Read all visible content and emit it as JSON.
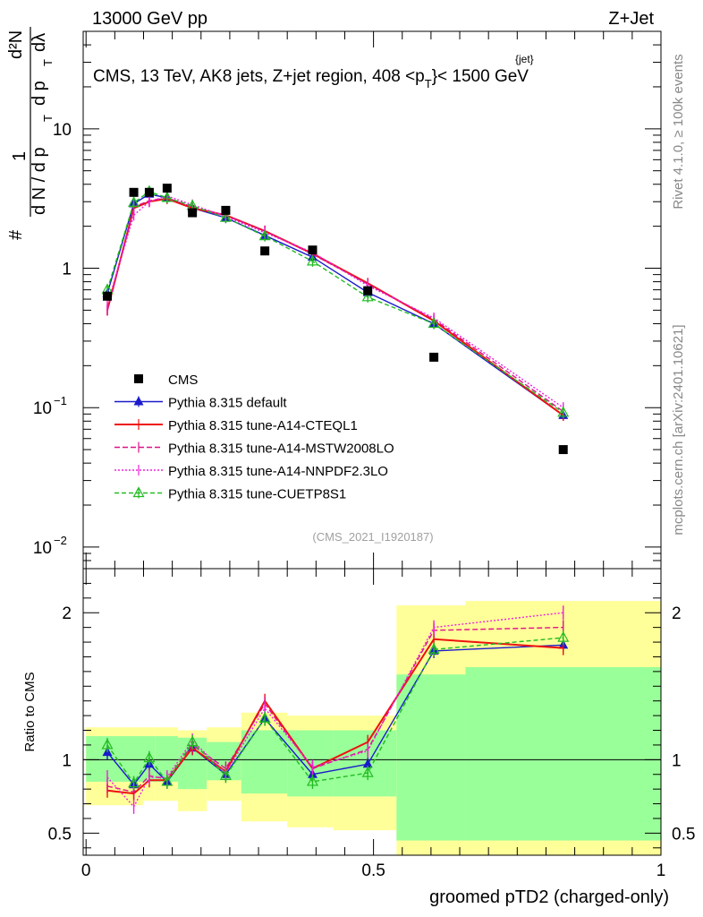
{
  "header": {
    "left": "13000 GeV pp",
    "right": "Z+Jet"
  },
  "side_labels": {
    "rivet": "Rivet 4.1.0, ≥ 100k events",
    "mcplots": "mcplots.cern.ch [arXiv:2401.10621]"
  },
  "chart_data": [
    {
      "type": "scatter",
      "title": "CMS, 13 TeV, AK8 jets, Z+jet region, 408 <p_T^{jet}< 1500 GeV",
      "title_parts": {
        "main": "CMS, 13 TeV, AK8 jets, Z+jet region, 408 <p",
        "sup": "{jet}",
        "sub": "T",
        "tail": "}< 1500 GeV"
      },
      "ylabel": "1 / (dN/dp_T) dN / (dp_T dλ)",
      "ylabel_parts": {
        "hash": "#",
        "one": "1",
        "dN": "d N / d p",
        "T": "T",
        "d2N": "d²N",
        "dpdl": "d p",
        "dl": "dλ"
      },
      "yscale": "log",
      "ylim": [
        0.007,
        50
      ],
      "y_ticks": [
        {
          "value": 0.01,
          "base": "10",
          "exp": "−2"
        },
        {
          "value": 0.1,
          "base": "10",
          "exp": "−1"
        },
        {
          "value": 1,
          "label": "1"
        },
        {
          "value": 10,
          "label": "10"
        }
      ],
      "xlim": [
        -0.005,
        1.0
      ],
      "watermark": "(CMS_2021_I1920187)",
      "legend_position": "bottom-left",
      "x": [
        0.037,
        0.083,
        0.11,
        0.141,
        0.185,
        0.243,
        0.311,
        0.394,
        0.49,
        0.605,
        0.83
      ],
      "series": [
        {
          "name": "CMS",
          "color": "#000000",
          "marker": "square",
          "values": [
            0.63,
            3.5,
            3.5,
            3.75,
            2.5,
            2.6,
            1.33,
            1.35,
            0.69,
            0.23,
            0.05
          ]
        },
        {
          "name": "Pythia 8.315 default",
          "color": "#1a1acc",
          "marker": "triangle",
          "dash": "",
          "values": [
            0.66,
            2.9,
            3.4,
            3.2,
            2.7,
            2.3,
            1.72,
            1.2,
            0.67,
            0.4,
            0.088
          ]
        },
        {
          "name": "Pythia 8.315 tune-A14-CTEQL1",
          "color": "#ee1111",
          "marker": "none",
          "dash": "",
          "values": [
            0.5,
            2.7,
            3.0,
            3.15,
            2.7,
            2.4,
            1.85,
            1.27,
            0.78,
            0.42,
            0.088
          ]
        },
        {
          "name": "Pythia 8.315 tune-A14-MSTW2008LO",
          "color": "#dd1188",
          "marker": "none",
          "dash": "6,3",
          "values": [
            0.5,
            2.75,
            3.05,
            3.2,
            2.75,
            2.4,
            1.85,
            1.26,
            0.77,
            0.43,
            0.094
          ]
        },
        {
          "name": "Pythia 8.315 tune-A14-NNPDF2.3LO",
          "color": "#ee22dd",
          "marker": "none",
          "dash": "2,2",
          "values": [
            0.55,
            2.4,
            3.0,
            3.3,
            2.85,
            2.35,
            1.8,
            1.3,
            0.75,
            0.44,
            0.1
          ]
        },
        {
          "name": "Pythia 8.315 tune-CUETP8S1",
          "color": "#22bb22",
          "marker": "open-triangle",
          "dash": "5,3",
          "values": [
            0.7,
            2.95,
            3.55,
            3.2,
            2.8,
            2.3,
            1.7,
            1.12,
            0.62,
            0.4,
            0.092
          ]
        }
      ]
    },
    {
      "type": "line",
      "ylabel": "Ratio to CMS",
      "xlabel": "groomed pTD2 (charged-only)",
      "ylim": [
        0.35,
        2.3
      ],
      "xlim": [
        -0.005,
        1.0
      ],
      "y_ticks": [
        0.5,
        1,
        2
      ],
      "x_ticks": [
        0,
        0.5,
        1
      ],
      "reference_line": 1,
      "bands": {
        "edges": [
          0.0,
          0.09,
          0.1,
          0.12,
          0.16,
          0.21,
          0.27,
          0.35,
          0.43,
          0.54,
          0.66,
          1.0
        ],
        "yellow": [
          [
            0.69,
            1.22
          ],
          [
            0.69,
            1.22
          ],
          [
            0.72,
            1.22
          ],
          [
            0.72,
            1.22
          ],
          [
            0.65,
            1.2
          ],
          [
            0.72,
            1.22
          ],
          [
            0.58,
            1.32
          ],
          [
            0.54,
            1.3
          ],
          [
            0.52,
            1.3
          ],
          [
            0.3,
            2.05
          ],
          [
            0.3,
            2.08
          ]
        ],
        "green": [
          [
            0.85,
            1.16
          ],
          [
            0.85,
            1.16
          ],
          [
            0.85,
            1.16
          ],
          [
            0.85,
            1.16
          ],
          [
            0.8,
            1.15
          ],
          [
            0.86,
            1.12
          ],
          [
            0.77,
            1.2
          ],
          [
            0.75,
            1.2
          ],
          [
            0.75,
            1.2
          ],
          [
            0.45,
            1.58
          ],
          [
            0.45,
            1.63
          ]
        ]
      },
      "x": [
        0.037,
        0.083,
        0.11,
        0.141,
        0.185,
        0.243,
        0.311,
        0.394,
        0.49,
        0.605,
        0.83
      ],
      "series": [
        {
          "name": "Pythia 8.315 default",
          "values": [
            1.05,
            0.83,
            0.97,
            0.85,
            1.08,
            0.9,
            1.28,
            0.9,
            0.97,
            1.74,
            1.78
          ]
        },
        {
          "name": "Pythia 8.315 tune-A14-CTEQL1",
          "values": [
            0.79,
            0.77,
            0.86,
            0.86,
            1.08,
            0.92,
            1.4,
            0.94,
            1.12,
            1.82,
            1.76
          ]
        },
        {
          "name": "Pythia 8.315 tune-A14-MSTW2008LO",
          "values": [
            0.82,
            0.78,
            0.89,
            0.87,
            1.1,
            0.94,
            1.38,
            0.94,
            1.07,
            1.88,
            1.9
          ]
        },
        {
          "name": "Pythia 8.315 tune-A14-NNPDF2.3LO",
          "values": [
            0.88,
            0.68,
            0.88,
            0.88,
            1.13,
            0.91,
            1.35,
            0.95,
            1.06,
            1.9,
            2.0
          ]
        },
        {
          "name": "Pythia 8.315 tune-CUETP8S1",
          "values": [
            1.1,
            0.84,
            1.01,
            0.85,
            1.12,
            0.89,
            1.28,
            0.85,
            0.91,
            1.75,
            1.83
          ]
        }
      ]
    }
  ]
}
